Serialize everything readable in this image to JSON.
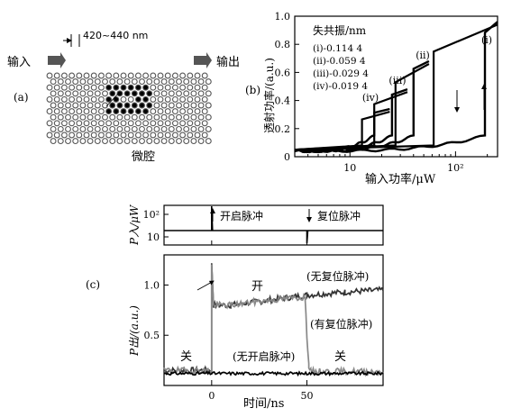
{
  "panel_a": {
    "label": "(a)",
    "spacing_label": "420~440 nm",
    "input_label": "输入",
    "output_label": "输出",
    "cavity_label": "微腔"
  },
  "panel_b": {
    "label": "(b)",
    "legend_title": "失共振/nm",
    "xlabel": "输入功率/μW",
    "ylabel": "透射功率/(a.u.)",
    "curve_labels": [
      "(i)",
      "(ii)",
      "(iii)",
      "(iv)"
    ]
  },
  "panel_c": {
    "label": "(c)",
    "top_ylabel": "P入/μW",
    "bottom_ylabel": "P出/(a.u.)",
    "xlabel": "时间/ns",
    "on_pulse_label": "开启脉冲",
    "reset_pulse_label": "复位脉冲",
    "on_state": "开",
    "off_state_left": "关",
    "off_state_right": "关",
    "no_reset_label": "(无复位脉冲)",
    "with_reset_label": "(有复位脉冲)",
    "no_on_label": "(无开启脉冲)"
  },
  "chart_data": [
    {
      "type": "line",
      "title": "",
      "xlabel": "输入功率/μW",
      "ylabel": "透射功率/(a.u.)",
      "x_scale": "log",
      "xlim": [
        3,
        250
      ],
      "ylim": [
        0,
        1.0
      ],
      "x_ticks": [
        "10",
        "10²"
      ],
      "y_ticks": [
        "0",
        "0.2",
        "0.4",
        "0.6",
        "0.8",
        "1.0"
      ],
      "legend_title": "失共振/nm",
      "series": [
        {
          "name": "(i)-0.114 4",
          "up_threshold": 190,
          "down_threshold": 62,
          "x": [
            3,
            20,
            60,
            120,
            190,
            190,
            250
          ],
          "y": [
            0.02,
            0.03,
            0.05,
            0.08,
            0.15,
            0.96,
            0.96
          ]
        },
        {
          "name": "(ii)-0.059 4",
          "up_threshold": 40,
          "down_threshold": 27,
          "x": [
            3,
            15,
            30,
            40,
            40,
            70
          ],
          "y": [
            0.02,
            0.04,
            0.06,
            0.1,
            0.6,
            0.68
          ]
        },
        {
          "name": "(iii)-0.029 4",
          "up_threshold": 25,
          "down_threshold": 17,
          "x": [
            3,
            10,
            20,
            25,
            25,
            45
          ],
          "y": [
            0.02,
            0.04,
            0.07,
            0.1,
            0.45,
            0.48
          ]
        },
        {
          "name": "(iv)-0.019 4",
          "up_threshold": 17,
          "down_threshold": 13,
          "x": [
            3,
            8,
            14,
            17,
            17,
            30
          ],
          "y": [
            0.02,
            0.03,
            0.06,
            0.09,
            0.3,
            0.34
          ]
        }
      ],
      "annotations": [
        "(i)",
        "(ii)",
        "(iii)",
        "(iv)"
      ]
    },
    {
      "type": "line",
      "title": "",
      "xlabel": "",
      "ylabel": "P入/μW",
      "y_scale": "log",
      "xlim": [
        -25,
        90
      ],
      "y_ticks": [
        "10²",
        "10"
      ],
      "series": [
        {
          "name": "",
          "x": [
            -25,
            0,
            0,
            0.5,
            50,
            50,
            50.5,
            90
          ],
          "y": [
            45,
            45,
            350,
            45,
            45,
            8,
            45,
            45
          ]
        }
      ],
      "annotations": [
        "开启脉冲",
        "复位脉冲"
      ]
    },
    {
      "type": "line",
      "title": "",
      "xlabel": "时间/ns",
      "ylabel": "P出/(a.u.)",
      "xlim": [
        -25,
        90
      ],
      "ylim": [
        0,
        1.3
      ],
      "x_ticks": [
        "0",
        "50"
      ],
      "y_ticks": [
        "0.5",
        "1.0"
      ],
      "series": [
        {
          "name": "(无复位脉冲)",
          "x": [
            -25,
            0,
            0,
            1,
            10,
            30,
            50,
            70,
            90
          ],
          "y": [
            0.15,
            0.15,
            1.2,
            0.8,
            0.8,
            0.85,
            0.9,
            0.93,
            0.95
          ]
        },
        {
          "name": "(有复位脉冲)",
          "x": [
            -25,
            0,
            0,
            1,
            10,
            30,
            49,
            50,
            51,
            52,
            90
          ],
          "y": [
            0.15,
            0.15,
            1.2,
            0.8,
            0.8,
            0.85,
            0.88,
            0.5,
            0.2,
            0.14,
            0.14
          ]
        },
        {
          "name": "(无开启脉冲)",
          "x": [
            -25,
            0,
            50,
            90
          ],
          "y": [
            0.12,
            0.12,
            0.12,
            0.12
          ]
        }
      ],
      "annotations": [
        "开",
        "关",
        "关"
      ]
    }
  ]
}
